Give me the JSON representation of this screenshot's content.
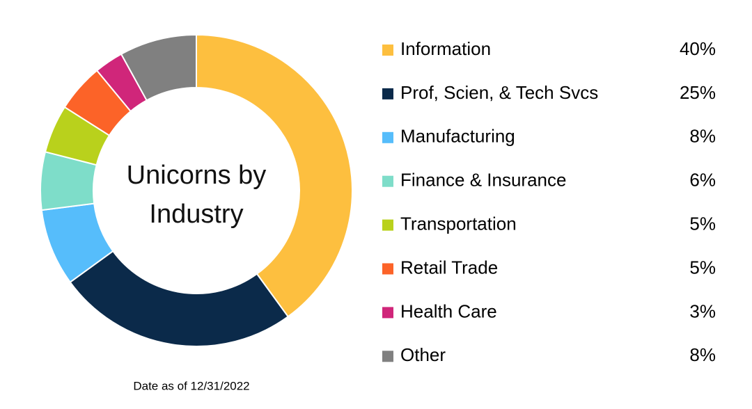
{
  "chart_data": {
    "type": "donut",
    "title": "Unicorns by Industry",
    "categories": [
      "Information",
      "Prof, Scien, & Tech Svcs",
      "Manufacturing",
      "Finance & Insurance",
      "Transportation",
      "Retail Trade",
      "Health Care",
      "Other"
    ],
    "values": [
      40,
      25,
      8,
      6,
      5,
      5,
      3,
      8
    ],
    "value_labels": [
      "40%",
      "25%",
      "8%",
      "6%",
      "5%",
      "5%",
      "3%",
      "8%"
    ],
    "colors": [
      "#fdbf3f",
      "#0b2a4a",
      "#56bdfb",
      "#7eddc9",
      "#b9d11c",
      "#fc6328",
      "#d0267a",
      "#808080"
    ],
    "legend": "right",
    "footnote": "Date as of 12/31/2022"
  }
}
